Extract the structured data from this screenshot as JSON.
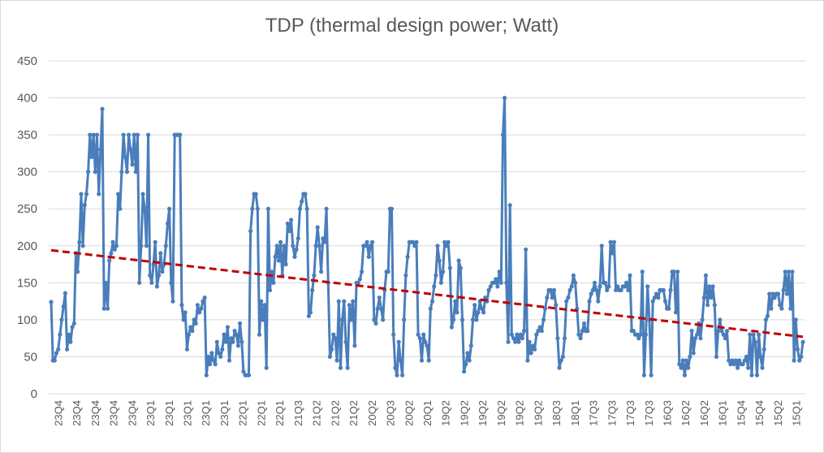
{
  "chart_data": {
    "type": "line",
    "title": "TDP (thermal design power; Watt)",
    "xlabel": "",
    "ylabel": "",
    "ylim": [
      0,
      450
    ],
    "yticks": [
      0,
      50,
      100,
      150,
      200,
      250,
      300,
      350,
      400,
      450
    ],
    "grid": true,
    "legend": "none",
    "colors": {
      "series": "#4a7ebb",
      "trend": "#c00000",
      "grid": "#d9d9d9",
      "text": "#595959"
    },
    "x_labels": [
      "23Q4",
      "23Q4",
      "23Q4",
      "23Q4",
      "23Q4",
      "23Q1",
      "23Q1",
      "23Q1",
      "23Q1",
      "23Q1",
      "22Q1",
      "22Q1",
      "22Q1",
      "21Q3",
      "21Q2",
      "21Q2",
      "21Q2",
      "20Q2",
      "20Q3",
      "20Q2",
      "20Q1",
      "19Q2",
      "19Q2",
      "19Q2",
      "19Q2",
      "19Q2",
      "19Q2",
      "18Q3",
      "18Q1",
      "17Q3",
      "17Q3",
      "17Q3",
      "17Q3",
      "16Q3",
      "16Q2",
      "16Q2",
      "16Q1",
      "15Q4",
      "15Q4",
      "15Q2",
      "15Q1"
    ],
    "series": [
      {
        "name": "",
        "values": [
          124,
          45,
          45,
          55,
          60,
          80,
          100,
          118,
          136,
          60,
          80,
          70,
          90,
          95,
          190,
          165,
          205,
          270,
          200,
          255,
          270,
          300,
          350,
          320,
          350,
          300,
          350,
          270,
          330,
          385,
          115,
          150,
          115,
          180,
          190,
          205,
          195,
          200,
          270,
          250,
          300,
          350,
          320,
          300,
          350,
          330,
          310,
          350,
          300,
          350,
          150,
          200,
          270,
          250,
          200,
          350,
          160,
          150,
          175,
          205,
          145,
          160,
          190,
          165,
          175,
          200,
          230,
          250,
          150,
          125,
          350,
          350,
          350,
          350,
          120,
          100,
          110,
          60,
          80,
          90,
          85,
          100,
          95,
          120,
          110,
          115,
          125,
          130,
          25,
          50,
          40,
          55,
          45,
          40,
          70,
          55,
          50,
          60,
          80,
          70,
          90,
          45,
          75,
          70,
          85,
          80,
          65,
          95,
          70,
          30,
          25,
          25,
          25,
          220,
          250,
          270,
          270,
          250,
          80,
          125,
          100,
          120,
          35,
          250,
          140,
          165,
          150,
          185,
          200,
          180,
          205,
          160,
          200,
          175,
          230,
          220,
          235,
          200,
          185,
          195,
          210,
          250,
          260,
          270,
          270,
          250,
          105,
          110,
          140,
          160,
          200,
          225,
          200,
          165,
          210,
          205,
          250,
          150,
          50,
          60,
          80,
          75,
          45,
          125,
          35,
          100,
          125,
          70,
          35,
          120,
          100,
          125,
          65,
          150,
          150,
          155,
          165,
          200,
          200,
          205,
          185,
          200,
          205,
          100,
          95,
          115,
          130,
          115,
          100,
          140,
          165,
          165,
          250,
          250,
          80,
          35,
          25,
          70,
          45,
          25,
          100,
          160,
          185,
          205,
          205,
          205,
          200,
          205,
          80,
          75,
          45,
          80,
          70,
          65,
          45,
          115,
          125,
          145,
          160,
          200,
          180,
          150,
          165,
          205,
          200,
          205,
          170,
          90,
          100,
          125,
          110,
          180,
          170,
          100,
          30,
          40,
          55,
          45,
          65,
          100,
          120,
          100,
          110,
          125,
          115,
          110,
          130,
          125,
          140,
          145,
          150,
          150,
          155,
          145,
          165,
          150,
          350,
          400,
          150,
          70,
          255,
          80,
          75,
          70,
          80,
          70,
          80,
          75,
          85,
          195,
          45,
          70,
          55,
          65,
          60,
          80,
          85,
          90,
          85,
          100,
          115,
          130,
          140,
          140,
          130,
          140,
          120,
          75,
          35,
          45,
          50,
          75,
          125,
          130,
          140,
          145,
          160,
          150,
          115,
          80,
          75,
          85,
          95,
          85,
          85,
          125,
          135,
          140,
          150,
          140,
          125,
          145,
          200,
          150,
          150,
          140,
          145,
          205,
          190,
          205,
          140,
          145,
          140,
          140,
          145,
          145,
          150,
          140,
          160,
          85,
          85,
          80,
          80,
          75,
          80,
          165,
          25,
          80,
          145,
          100,
          25,
          125,
          130,
          135,
          130,
          140,
          140,
          140,
          125,
          115,
          115,
          140,
          165,
          165,
          110,
          165,
          40,
          35,
          45,
          25,
          45,
          35,
          50,
          85,
          55,
          75,
          80,
          95,
          75,
          100,
          130,
          160,
          120,
          145,
          130,
          145,
          120,
          50,
          85,
          100,
          85,
          80,
          75,
          85,
          45,
          40,
          45,
          40,
          45,
          35,
          45,
          40,
          40,
          45,
          50,
          35,
          80,
          25,
          80,
          70,
          25,
          80,
          50,
          35,
          60,
          100,
          105,
          135,
          115,
          135,
          130,
          135,
          135,
          120,
          115,
          140,
          165,
          135,
          165,
          115,
          165,
          45,
          100,
          60,
          45,
          50,
          70
        ],
        "trend": [
          194,
          77
        ]
      }
    ]
  }
}
